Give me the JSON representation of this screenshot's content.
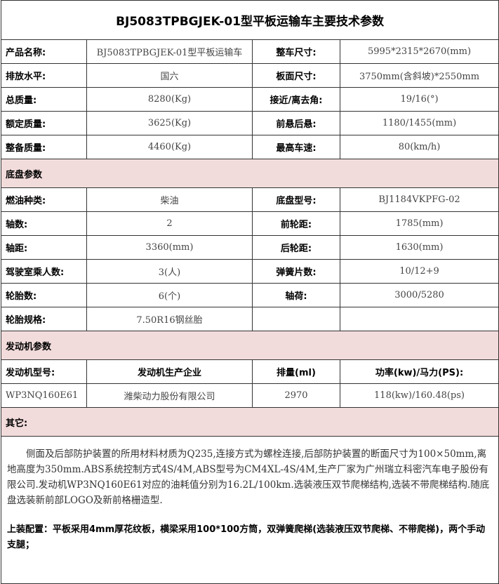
{
  "title": "BJ5083TPBGJEK-01型平板运输车主要技术参数",
  "main_specs": [
    [
      "产品名称:",
      "BJ5083TPBGJEK-01型平板运输车",
      "整车尺寸:",
      "5995*2315*2670(mm)"
    ],
    [
      "排放水平:",
      "国六",
      "板面尺寸:",
      "3750mm(含斜坡)*2550mm"
    ],
    [
      "总质量:",
      "8280(Kg)",
      "接近/离去角:",
      "19/16(°)"
    ],
    [
      "额定质量:",
      "3625(Kg)",
      "前悬后悬:",
      "1180/1455(mm)"
    ],
    [
      "整备质量:",
      "4460(Kg)",
      "最高车速:",
      "80(km/h)"
    ]
  ],
  "chassis_section": "底盘参数",
  "chassis_specs": [
    [
      "燃油种类:",
      "柴油",
      "底盘型号:",
      "BJ1184VKPFG-02"
    ],
    [
      "轴数:",
      "2",
      "前轮距:",
      "1785(mm)"
    ],
    [
      "轴距:",
      "3360(mm)",
      "后轮距:",
      "1630(mm)"
    ],
    [
      "驾驶室乘人数:",
      "3(人)",
      "弹簧片数:",
      "10/12+9"
    ],
    [
      "轮胎数:",
      "6(个)",
      "轴荷:",
      "3000/5280"
    ],
    [
      "轮胎规格:",
      "7.50R16钢丝胎",
      "",
      ""
    ]
  ],
  "engine_section": "发动机参数",
  "engine_headers": [
    "发动机型号:",
    "发动机生产企业",
    "排量(ml)",
    "功率(kw)/马力(PS):"
  ],
  "engine_values": [
    "WP3NQ160E61",
    "潍柴动力股份有限公司",
    "2970",
    "118(kw)/160.48(ps)"
  ],
  "other_section": "其它:",
  "other_text": "侧面及后部防护装置的所用材料材质为Q235,连接方式为螺栓连接,后部防护装置的断面尺寸为100×50mm,离地高度为350mm.ABS系统控制方式4S/4M,ABS型号为CM4XL-4S/4M,生产厂家为广州瑞立科密汽车电子股份有限公司.发动机WP3NQ160E61对应的油耗值分别为16.2L/100km.选装液压双节爬梯结构,选装不带爬梯结构.随底盘选装新前部LOGO及新前格栅造型.",
  "upper_config": "上装配置：平板采用4mm厚花纹板，横梁采用100*100方筒，双弹簧爬梯(选装液压双节爬梯、不带爬梯)，两个手动支腿；",
  "colors": {
    "section_bg": "#f2dcdb",
    "border": "#333333"
  }
}
